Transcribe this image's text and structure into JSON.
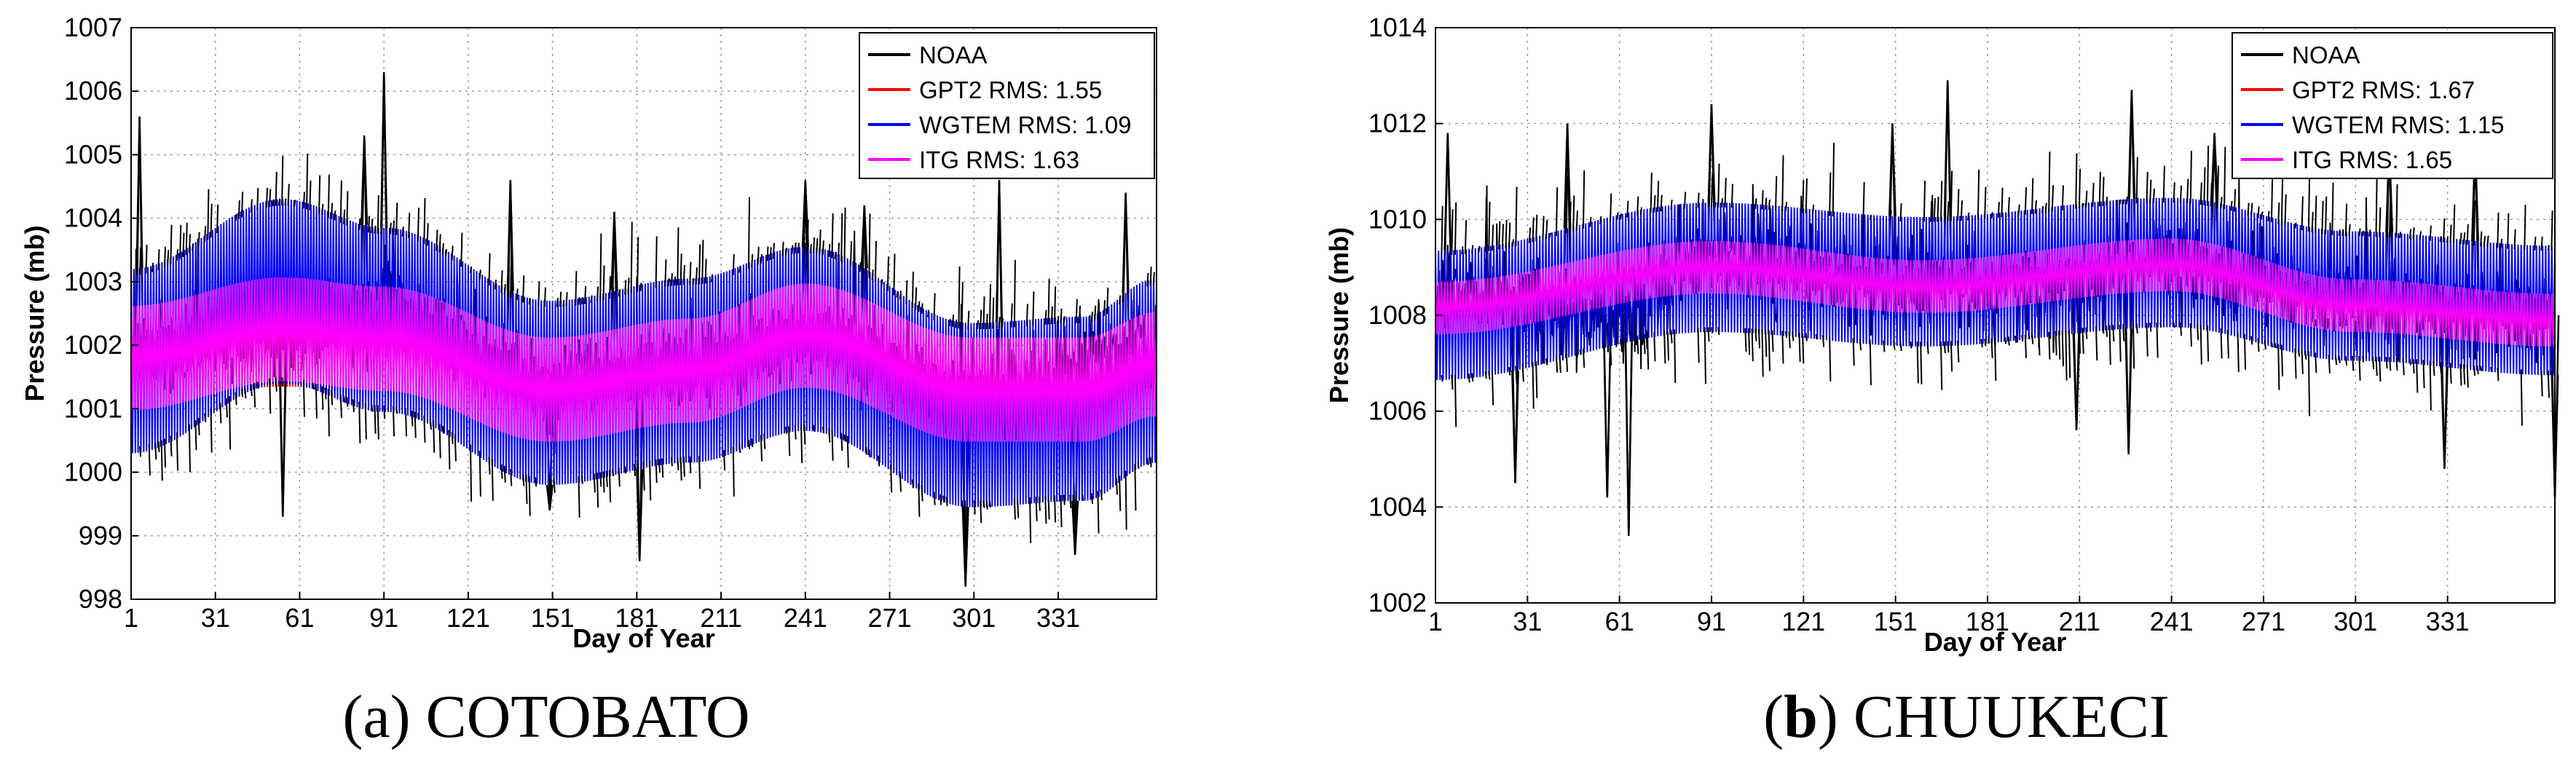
{
  "chart_data": [
    {
      "type": "line",
      "panel": "a",
      "caption": "(a) COTOBATO",
      "xlabel": "Day of Year",
      "ylabel": "Pressure (mb)",
      "xlim": [
        1,
        366
      ],
      "ylim": [
        998,
        1007
      ],
      "xticks": [
        1,
        31,
        61,
        91,
        121,
        151,
        181,
        211,
        241,
        271,
        301,
        331
      ],
      "yticks": [
        998,
        999,
        1000,
        1001,
        1002,
        1003,
        1004,
        1005,
        1006,
        1007
      ],
      "grid": true,
      "legend_position": "top-right",
      "series": [
        {
          "name": "NOAA",
          "label": "NOAA",
          "color": "#000000",
          "mean": [
            [
              1,
              1001.9
            ],
            [
              60,
              1002.2
            ],
            [
              91,
              1002.6
            ],
            [
              150,
              1001.4
            ],
            [
              200,
              1001.7
            ],
            [
              241,
              1002.1
            ],
            [
              300,
              1001.2
            ],
            [
              366,
              1001.9
            ]
          ],
          "spread": 1.2,
          "spikes_up": [
            [
              4,
              1005.6
            ],
            [
              91,
              1006.3
            ],
            [
              84,
              1005.3
            ],
            [
              136,
              1004.6
            ],
            [
              173,
              1004.1
            ],
            [
              241,
              1004.6
            ],
            [
              262,
              1004.2
            ],
            [
              310,
              1004.6
            ],
            [
              355,
              1004.4
            ]
          ],
          "spikes_down": [
            [
              55,
              999.3
            ],
            [
              182,
              998.6
            ],
            [
              298,
              998.2
            ],
            [
              337,
              998.7
            ],
            [
              150,
              999.4
            ]
          ]
        },
        {
          "name": "GPT2",
          "label": "GPT2 RMS: 1.55",
          "color": "#ff0000",
          "mean": [
            [
              1,
              1001.85
            ],
            [
              55,
              1002.25
            ],
            [
              91,
              1002.1
            ],
            [
              150,
              1001.35
            ],
            [
              200,
              1001.6
            ],
            [
              241,
              1002.15
            ],
            [
              300,
              1001.3
            ],
            [
              340,
              1001.3
            ],
            [
              366,
              1001.7
            ]
          ],
          "amp": 0.9
        },
        {
          "name": "WGTEM",
          "label": "WGTEM RMS: 1.09",
          "color": "#0000ff",
          "mean": [
            [
              1,
              1001.75
            ],
            [
              55,
              1002.85
            ],
            [
              91,
              1002.4
            ],
            [
              150,
              1001.25
            ],
            [
              200,
              1001.6
            ],
            [
              241,
              1002.1
            ],
            [
              300,
              1000.9
            ],
            [
              340,
              1001.0
            ],
            [
              366,
              1001.6
            ]
          ],
          "amp": 1.45
        },
        {
          "name": "ITG",
          "label": "ITG RMS: 1.63",
          "color": "#ff00ff",
          "mean": [
            [
              1,
              1001.8
            ],
            [
              55,
              1002.25
            ],
            [
              91,
              1002.1
            ],
            [
              150,
              1001.3
            ],
            [
              200,
              1001.6
            ],
            [
              241,
              1002.15
            ],
            [
              300,
              1001.3
            ],
            [
              340,
              1001.3
            ],
            [
              366,
              1001.7
            ]
          ],
          "amp": 0.82
        }
      ]
    },
    {
      "type": "line",
      "panel": "b",
      "caption_prefix": "(",
      "caption_bold": "b",
      "caption_rest": ") CHUUKECI",
      "xlabel": "Day of Year",
      "ylabel": "Pressure (mb)",
      "xlim": [
        1,
        366
      ],
      "ylim": [
        1002,
        1014
      ],
      "xticks": [
        1,
        31,
        61,
        91,
        121,
        151,
        181,
        211,
        241,
        271,
        301,
        331
      ],
      "yticks": [
        1002,
        1004,
        1006,
        1008,
        1010,
        1012,
        1014
      ],
      "grid": true,
      "legend_position": "top-right",
      "series": [
        {
          "name": "NOAA",
          "label": "NOAA",
          "color": "#000000",
          "mean": [
            [
              1,
              1008.4
            ],
            [
              60,
              1008.0
            ],
            [
              91,
              1009.2
            ],
            [
              150,
              1008.7
            ],
            [
              200,
              1008.6
            ],
            [
              241,
              1009.1
            ],
            [
              300,
              1008.2
            ],
            [
              366,
              1008.0
            ]
          ],
          "spread": 1.7,
          "spikes_up": [
            [
              5,
              1011.8
            ],
            [
              44,
              1012.0
            ],
            [
              91,
              1012.4
            ],
            [
              150,
              1012.0
            ],
            [
              168,
              1012.9
            ],
            [
              228,
              1012.7
            ],
            [
              255,
              1011.8
            ],
            [
              312,
              1011.6
            ],
            [
              340,
              1011.6
            ]
          ],
          "spikes_down": [
            [
              64,
              1003.4
            ],
            [
              57,
              1004.2
            ],
            [
              27,
              1004.5
            ],
            [
              227,
              1005.1
            ],
            [
              330,
              1004.8
            ],
            [
              366,
              1004.2
            ],
            [
              210,
              1005.6
            ]
          ]
        },
        {
          "name": "GPT2",
          "label": "GPT2 RMS: 1.67",
          "color": "#ff0000",
          "mean": [
            [
              1,
              1008.15
            ],
            [
              91,
              1009.0
            ],
            [
              160,
              1008.6
            ],
            [
              241,
              1009.05
            ],
            [
              300,
              1008.2
            ],
            [
              366,
              1007.9
            ]
          ],
          "amp": 0.6
        },
        {
          "name": "WGTEM",
          "label": "WGTEM RMS: 1.15",
          "color": "#0000ff",
          "mean": [
            [
              1,
              1008.0
            ],
            [
              91,
              1009.0
            ],
            [
              160,
              1008.7
            ],
            [
              241,
              1009.1
            ],
            [
              300,
              1008.4
            ],
            [
              366,
              1008.1
            ]
          ],
          "amp": 1.35
        },
        {
          "name": "ITG",
          "label": "ITG RMS: 1.65",
          "color": "#ff00ff",
          "mean": [
            [
              1,
              1008.15
            ],
            [
              91,
              1009.0
            ],
            [
              160,
              1008.6
            ],
            [
              241,
              1009.05
            ],
            [
              300,
              1008.2
            ],
            [
              366,
              1007.9
            ]
          ],
          "amp": 0.55
        }
      ]
    }
  ]
}
